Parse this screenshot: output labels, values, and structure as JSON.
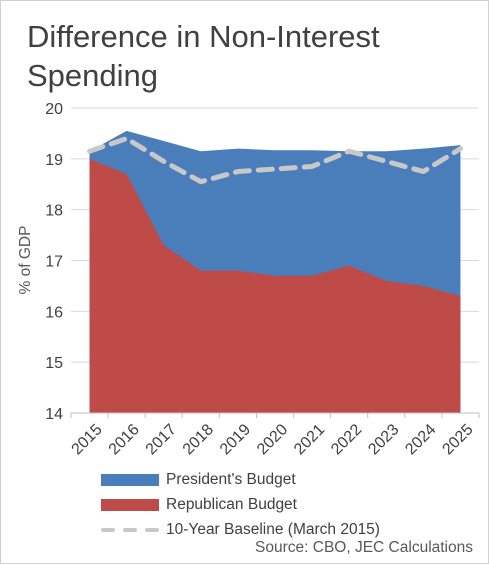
{
  "title_line1": "Difference  in Non-Interest",
  "title_line2": "Spending",
  "source": "Source: CBO, JEC Calculations",
  "colors": {
    "presidents": "#4a7ebb",
    "republican": "#be4b48",
    "baseline": "#c8c8c8",
    "text": "#404040",
    "axis": "#bfbfbf",
    "grid": "#d9d9d9"
  },
  "chart_data": {
    "type": "area",
    "title": "Difference  in Non-Interest Spending",
    "xlabel": "",
    "ylabel": "% of GDP",
    "ylim": [
      14,
      20
    ],
    "yticks": [
      "14",
      "15",
      "16",
      "17",
      "18",
      "19",
      "20"
    ],
    "x": [
      "2015",
      "2016",
      "2017",
      "2018",
      "2019",
      "2020",
      "2021",
      "2022",
      "2023",
      "2024",
      "2025"
    ],
    "grid": true,
    "legend_position": "bottom",
    "series": [
      {
        "name": "President's Budget",
        "kind": "area",
        "values": [
          19.15,
          19.55,
          19.35,
          19.15,
          19.2,
          19.17,
          19.17,
          19.15,
          19.15,
          19.2,
          19.27
        ]
      },
      {
        "name": "Republican Budget",
        "kind": "area",
        "values": [
          19.0,
          18.7,
          17.3,
          16.8,
          16.8,
          16.7,
          16.7,
          16.9,
          16.6,
          16.5,
          16.3
        ]
      },
      {
        "name": "10-Year Baseline (March 2015)",
        "kind": "dashed-line",
        "values": [
          19.15,
          19.4,
          18.95,
          18.55,
          18.75,
          18.8,
          18.85,
          19.15,
          18.95,
          18.75,
          19.2
        ]
      }
    ]
  }
}
